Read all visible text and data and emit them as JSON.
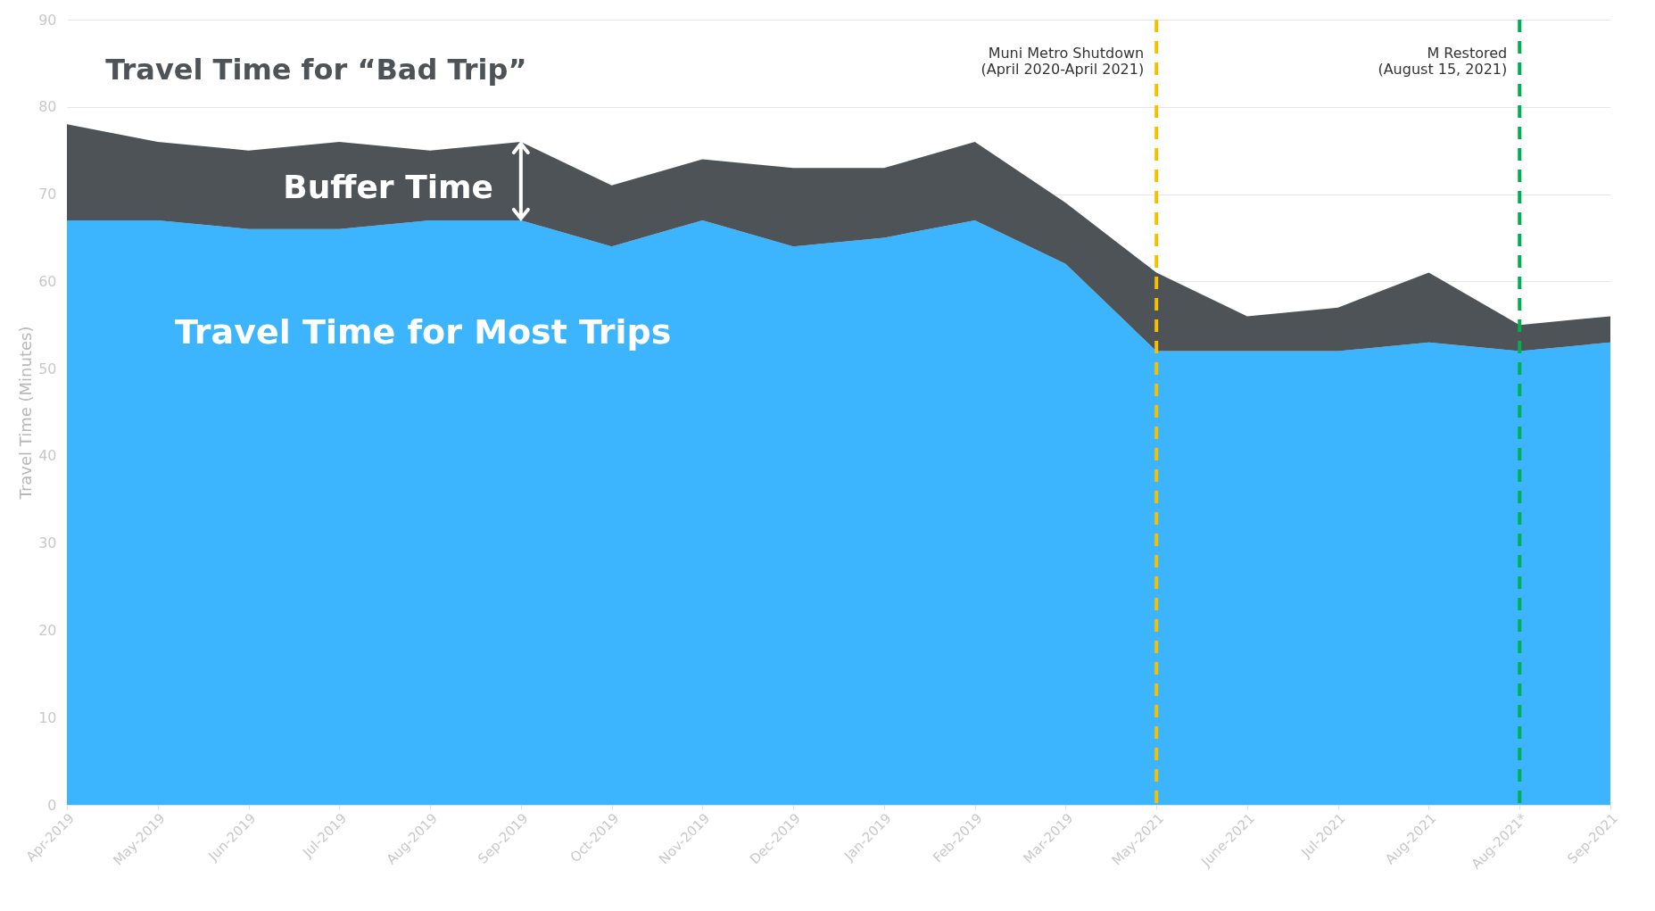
{
  "chart_data": {
    "type": "area",
    "stacked": true,
    "title": "Travel Time for “Bad Trip”",
    "ylabel": "Travel Time (Minutes)",
    "categories": [
      "Apr-2019",
      "May-2019",
      "Jun-2019",
      "Jul-2019",
      "Aug-2019",
      "Sep-2019",
      "Oct-2019",
      "Nov-2019",
      "Dec-2019",
      "Jan-2019",
      "Feb-2019",
      "Mar-2019",
      "May-2021",
      "June-2021",
      "Jul-2021",
      "Aug-2021",
      "Aug-2021*",
      "Sep-2021"
    ],
    "series": [
      {
        "name": "Travel Time for Most Trips",
        "color": "#3cb4fe",
        "values": [
          67,
          67,
          66,
          66,
          67,
          67,
          64,
          67,
          64,
          65,
          67,
          62,
          52,
          52,
          52,
          53,
          52,
          53
        ]
      },
      {
        "name": "Buffer Time",
        "color": "#4d5357",
        "values": [
          11,
          9,
          9,
          10,
          8,
          9,
          7,
          7,
          9,
          8,
          9,
          7,
          9,
          4,
          5,
          8,
          3,
          3
        ]
      }
    ],
    "ylim": [
      0,
      90
    ],
    "yticks": [
      0,
      10,
      20,
      30,
      40,
      50,
      60,
      70,
      80,
      90
    ],
    "grid": "y",
    "ref_lines": [
      {
        "axis": "x",
        "value": "May-2021",
        "label": "Muni Metro Shutdown\n(April 2020-April 2021)",
        "color": "#f5c000",
        "line_style": "dashed"
      },
      {
        "axis": "x",
        "value": "Aug-2021*",
        "label": "M Restored\n(August 15, 2021)",
        "color": "#00b050",
        "line_style": "dashed"
      }
    ]
  }
}
